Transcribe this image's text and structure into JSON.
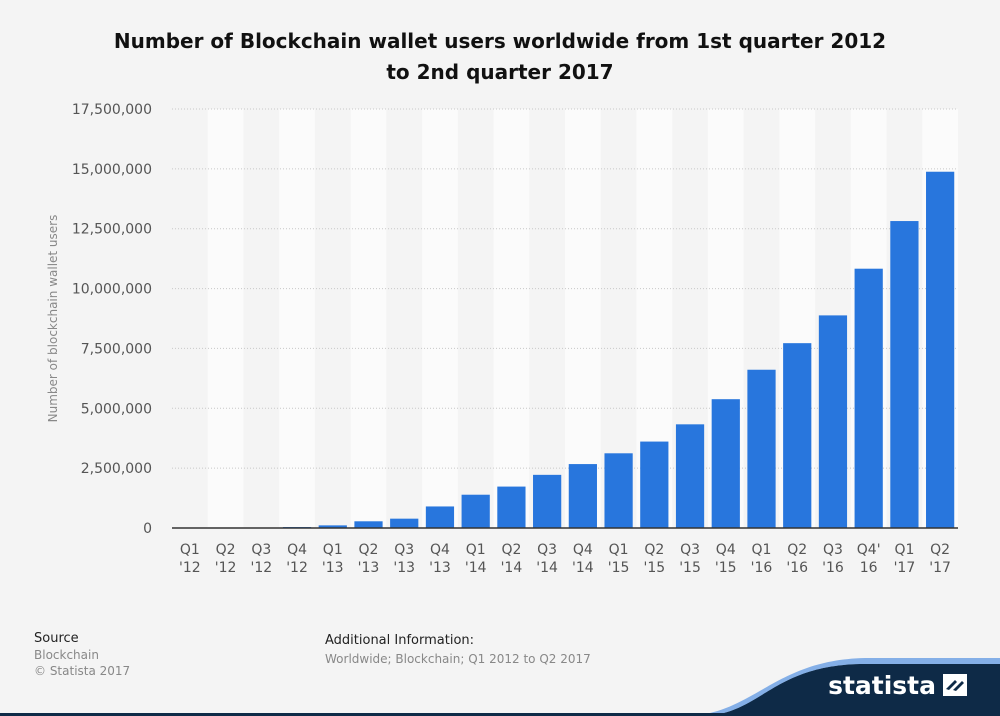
{
  "title": {
    "line1": "Number of Blockchain wallet users worldwide from 1st quarter 2012",
    "line2": "to 2nd quarter 2017"
  },
  "chart_data": {
    "type": "bar",
    "ylabel": "Number of blockchain wallet users",
    "ylim": [
      0,
      17500000
    ],
    "yticks": [
      0,
      2500000,
      5000000,
      7500000,
      10000000,
      12500000,
      15000000,
      17500000
    ],
    "ytick_labels": [
      "0",
      "2,500,000",
      "5,000,000",
      "7,500,000",
      "10,000,000",
      "12,500,000",
      "15,000,000",
      "17,500,000"
    ],
    "grid": true,
    "categories": [
      [
        "Q1",
        "'12"
      ],
      [
        "Q2",
        "'12"
      ],
      [
        "Q3",
        "'12"
      ],
      [
        "Q4",
        "'12"
      ],
      [
        "Q1",
        "'13"
      ],
      [
        "Q2",
        "'13"
      ],
      [
        "Q3",
        "'13"
      ],
      [
        "Q4",
        "'13"
      ],
      [
        "Q1",
        "'14"
      ],
      [
        "Q2",
        "'14"
      ],
      [
        "Q3",
        "'14"
      ],
      [
        "Q4",
        "'14"
      ],
      [
        "Q1",
        "'15"
      ],
      [
        "Q2",
        "'15"
      ],
      [
        "Q3",
        "'15"
      ],
      [
        "Q4",
        "'15"
      ],
      [
        "Q1",
        "'16"
      ],
      [
        "Q2",
        "'16"
      ],
      [
        "Q3",
        "'16"
      ],
      [
        "Q4'",
        "16"
      ],
      [
        "Q1",
        "'17"
      ],
      [
        "Q2",
        "'17"
      ]
    ],
    "values": [
      0,
      10000,
      20000,
      40000,
      110000,
      280000,
      390000,
      900000,
      1390000,
      1730000,
      2220000,
      2670000,
      3120000,
      3610000,
      4330000,
      5380000,
      6610000,
      7720000,
      8880000,
      10830000,
      12820000,
      14880000
    ],
    "bar_color": "#2876dd"
  },
  "footer": {
    "source_label": "Source",
    "source_value": "Blockchain",
    "copyright": "© Statista 2017",
    "additional_label": "Additional Information:",
    "additional_value": "Worldwide; Blockchain; Q1 2012 to Q2 2017"
  },
  "brand": {
    "name": "statista",
    "color": "#0e2a47"
  }
}
